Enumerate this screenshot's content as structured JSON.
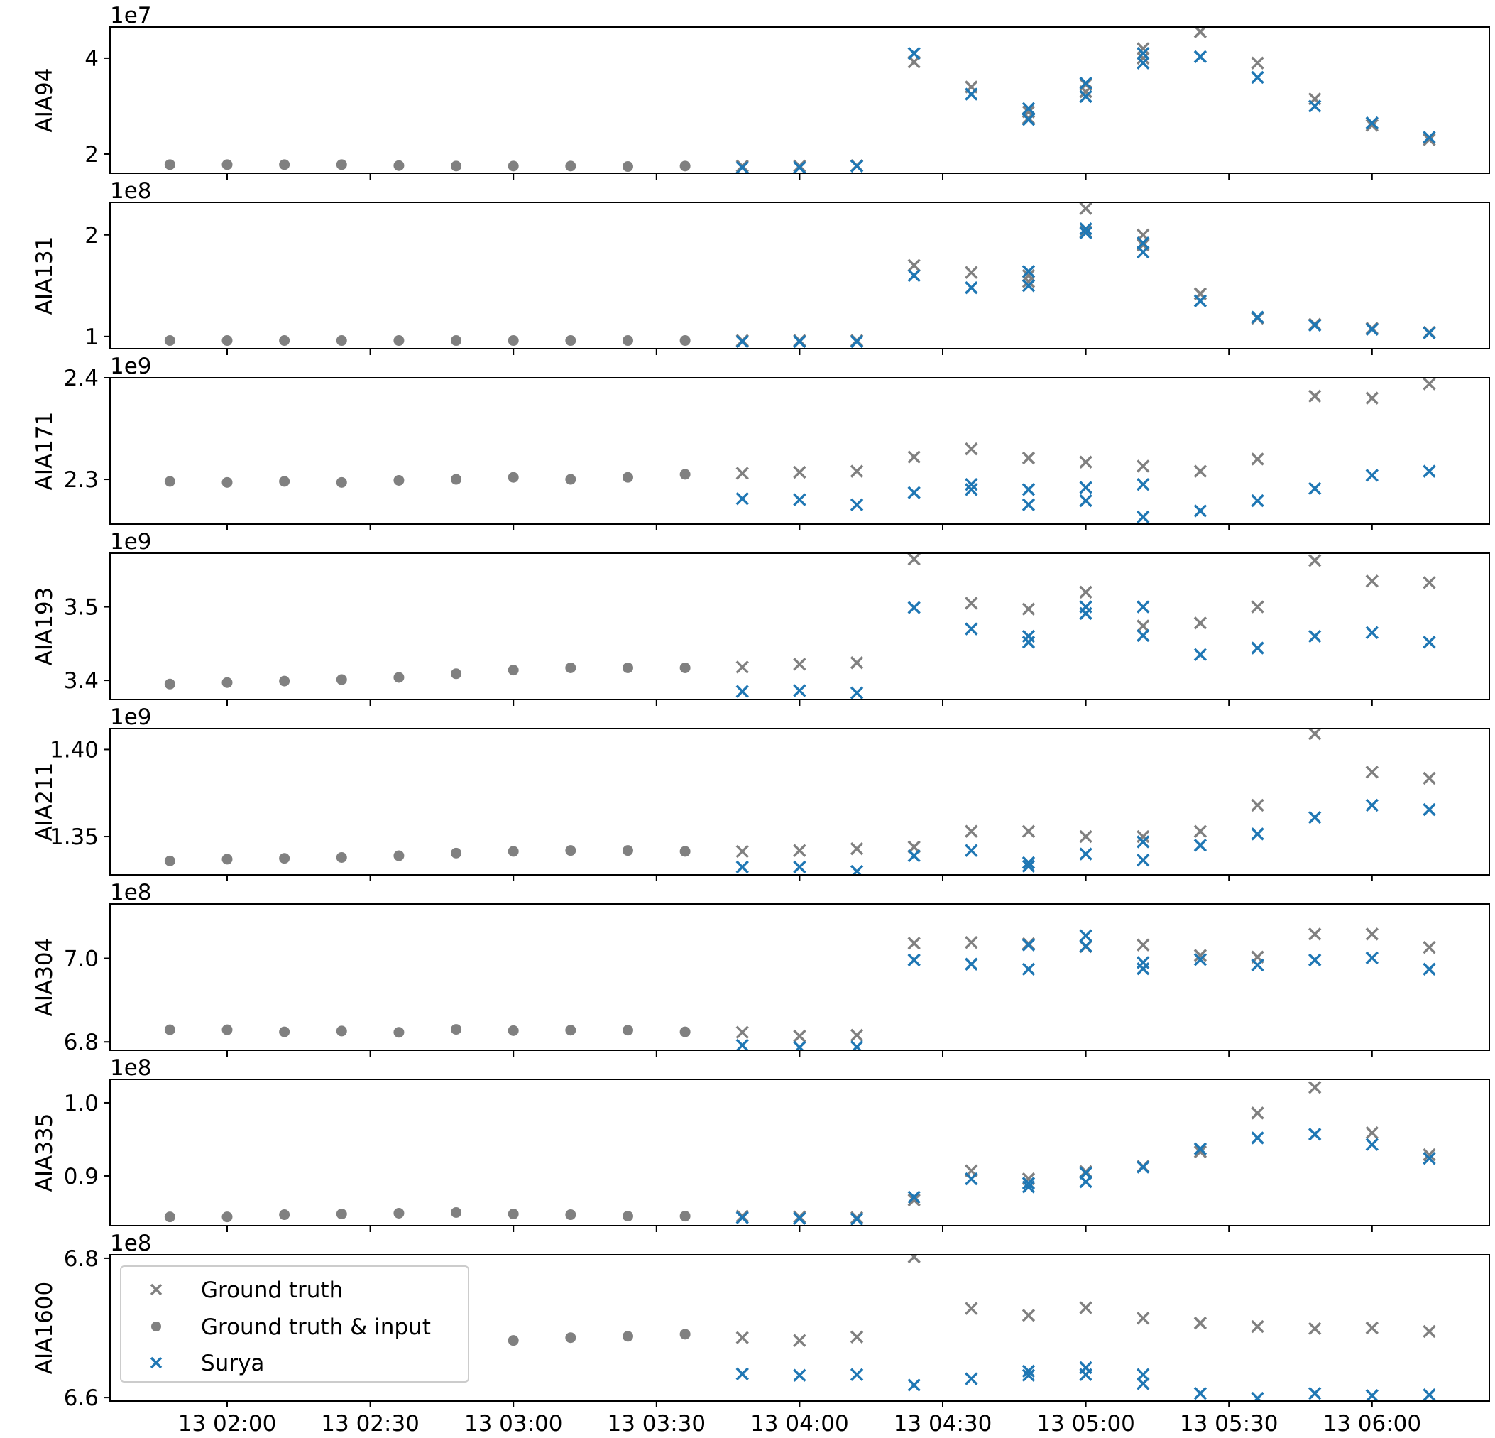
{
  "chart_data": {
    "type": "scatter",
    "x_tick_labels": [
      "13 02:00",
      "13 02:30",
      "13 03:00",
      "13 03:30",
      "13 04:00",
      "13 04:30",
      "13 05:00",
      "13 05:30",
      "13 06:00"
    ],
    "legend": {
      "location": "upper-left of bottom panel",
      "entries": [
        {
          "label": "Ground truth",
          "marker": "x",
          "color": "#808080"
        },
        {
          "label": "Ground truth & input",
          "marker": "dot",
          "color": "#808080"
        },
        {
          "label": "Surya",
          "marker": "x",
          "color": "#1f77b4"
        }
      ]
    },
    "colors": {
      "ground_truth": "#808080",
      "surya": "#1f77b4"
    },
    "input_times": [
      "01:48",
      "02:00",
      "02:12",
      "02:24",
      "02:36",
      "02:48",
      "03:00",
      "03:12",
      "03:24",
      "03:36"
    ],
    "forecast_times": [
      "03:48",
      "04:00",
      "04:12",
      "04:24",
      "04:36",
      "04:48",
      "05:00",
      "05:12",
      "05:24",
      "05:36",
      "05:48",
      "06:00",
      "06:12"
    ],
    "panels": [
      {
        "ylabel": "AIA94",
        "offset": "1e7",
        "ylim": [
          16000000,
          46500000
        ],
        "yticks": [
          {
            "value": 20000000,
            "label": "2"
          },
          {
            "value": 40000000,
            "label": "4"
          }
        ],
        "input": [
          17800000,
          17800000,
          17800000,
          17800000,
          17600000,
          17500000,
          17500000,
          17500000,
          17400000,
          17500000
        ],
        "ground_truth": [
          [
            17500000
          ],
          [
            17500000
          ],
          [
            17600000
          ],
          [
            39200000
          ],
          [
            34000000
          ],
          [
            28800000,
            27500000
          ],
          [
            34500000,
            33000000
          ],
          [
            42000000,
            40000000
          ],
          [
            45500000
          ],
          [
            39000000
          ],
          [
            31500000
          ],
          [
            26000000
          ],
          [
            23000000
          ]
        ],
        "surya": [
          [
            17200000
          ],
          [
            17200000
          ],
          [
            17500000
          ],
          [
            41000000
          ],
          [
            32500000
          ],
          [
            29500000,
            27200000
          ],
          [
            34800000,
            32000000
          ],
          [
            41000000,
            39000000
          ],
          [
            40300000
          ],
          [
            36000000
          ],
          [
            30000000
          ],
          [
            26500000
          ],
          [
            23500000
          ]
        ]
      },
      {
        "ylabel": "AIA131",
        "offset": "1e8",
        "ylim": [
          88000000,
          232000000
        ],
        "yticks": [
          {
            "value": 100000000,
            "label": "1"
          },
          {
            "value": 200000000,
            "label": "2"
          }
        ],
        "input": [
          96000000,
          96000000,
          96000000,
          96000000,
          96000000,
          96000000,
          96000000,
          96000000,
          96000000,
          96000000
        ],
        "ground_truth": [
          [
            96000000
          ],
          [
            96000000
          ],
          [
            96000000
          ],
          [
            170000000
          ],
          [
            163000000
          ],
          [
            160000000,
            154000000
          ],
          [
            226000000,
            203000000
          ],
          [
            200000000,
            190000000
          ],
          [
            142000000
          ],
          [
            118000000
          ],
          [
            112000000
          ],
          [
            108000000
          ],
          [
            104000000
          ]
        ],
        "surya": [
          [
            95000000
          ],
          [
            95000000
          ],
          [
            95000000
          ],
          [
            160000000
          ],
          [
            148000000
          ],
          [
            164000000,
            150000000
          ],
          [
            206000000,
            202000000
          ],
          [
            192000000,
            183000000
          ],
          [
            135000000
          ],
          [
            119000000
          ],
          [
            111000000
          ],
          [
            107000000
          ],
          [
            103500000
          ]
        ]
      },
      {
        "ylabel": "AIA171",
        "offset": "1e9",
        "ylim": [
          2256000000,
          2400000000
        ],
        "yticks": [
          {
            "value": 2300000000,
            "label": "2.3"
          },
          {
            "value": 2400000000,
            "label": "2.4"
          }
        ],
        "input": [
          2298000000,
          2297000000,
          2298000000,
          2297000000,
          2299000000,
          2300000000,
          2302000000,
          2300000000,
          2302000000,
          2305000000
        ],
        "ground_truth": [
          [
            2306000000
          ],
          [
            2307000000
          ],
          [
            2308000000
          ],
          [
            2322000000
          ],
          [
            2330000000
          ],
          [
            2321000000
          ],
          [
            2317000000
          ],
          [
            2313000000
          ],
          [
            2308000000
          ],
          [
            2320000000
          ],
          [
            2382000000
          ],
          [
            2380000000
          ],
          [
            2394000000
          ]
        ],
        "surya": [
          [
            2281000000
          ],
          [
            2280000000
          ],
          [
            2275000000
          ],
          [
            2287000000
          ],
          [
            2295000000,
            2290000000
          ],
          [
            2275000000,
            2290000000
          ],
          [
            2292000000,
            2279000000
          ],
          [
            2295000000,
            2263000000
          ],
          [
            2269000000
          ],
          [
            2279000000
          ],
          [
            2291000000
          ],
          [
            2304000000
          ],
          [
            2308000000
          ]
        ]
      },
      {
        "ylabel": "AIA193",
        "offset": "1e9",
        "ylim": [
          3374000000,
          3573000000
        ],
        "yticks": [
          {
            "value": 3400000000,
            "label": "3.4"
          },
          {
            "value": 3500000000,
            "label": "3.5"
          }
        ],
        "input": [
          3395000000,
          3397000000,
          3399000000,
          3401000000,
          3404000000,
          3409000000,
          3414000000,
          3417000000,
          3417000000,
          3417000000
        ],
        "ground_truth": [
          [
            3418000000
          ],
          [
            3422000000
          ],
          [
            3424000000
          ],
          [
            3565000000
          ],
          [
            3505000000
          ],
          [
            3497000000
          ],
          [
            3520000000
          ],
          [
            3474000000
          ],
          [
            3478000000
          ],
          [
            3500000000
          ],
          [
            3563000000
          ],
          [
            3535000000
          ],
          [
            3533000000
          ]
        ],
        "surya": [
          [
            3385000000
          ],
          [
            3386000000
          ],
          [
            3383000000
          ],
          [
            3499000000
          ],
          [
            3470000000
          ],
          [
            3460000000,
            3452000000
          ],
          [
            3500000000,
            3491000000
          ],
          [
            3500000000,
            3461000000
          ],
          [
            3435000000
          ],
          [
            3444000000
          ],
          [
            3460000000
          ],
          [
            3465000000
          ],
          [
            3452000000
          ]
        ]
      },
      {
        "ylabel": "AIA211",
        "offset": "1e9",
        "ylim": [
          1328000000,
          1412000000
        ],
        "yticks": [
          {
            "value": 1350000000,
            "label": "1.35"
          },
          {
            "value": 1400000000,
            "label": "1.40"
          }
        ],
        "input": [
          1336000000,
          1337000000,
          1337500000,
          1338000000,
          1339000000,
          1340500000,
          1341500000,
          1342000000,
          1342000000,
          1341500000
        ],
        "ground_truth": [
          [
            1341500000
          ],
          [
            1342000000
          ],
          [
            1343000000
          ],
          [
            1344000000
          ],
          [
            1353000000
          ],
          [
            1353000000
          ],
          [
            1350000000
          ],
          [
            1350000000
          ],
          [
            1353000000
          ],
          [
            1368000000
          ],
          [
            1409000000
          ],
          [
            1387000000
          ],
          [
            1383500000
          ]
        ],
        "surya": [
          [
            1332500000
          ],
          [
            1332500000
          ],
          [
            1330000000
          ],
          [
            1339000000
          ],
          [
            1342000000
          ],
          [
            1335000000,
            1333000000
          ],
          [
            1340000000
          ],
          [
            1336500000,
            1347000000
          ],
          [
            1345000000
          ],
          [
            1351500000
          ],
          [
            1361000000
          ],
          [
            1368000000
          ],
          [
            1365500000
          ]
        ]
      },
      {
        "ylabel": "AIA304",
        "offset": "1e8",
        "ylim": [
          678000000,
          713000000
        ],
        "yticks": [
          {
            "value": 680000000,
            "label": "6.8"
          },
          {
            "value": 700000000,
            "label": "7.0"
          }
        ],
        "input": [
          682900000,
          682900000,
          682400000,
          682600000,
          682300000,
          683000000,
          682700000,
          682800000,
          682800000,
          682400000
        ],
        "ground_truth": [
          [
            682300000
          ],
          [
            681400000
          ],
          [
            681600000
          ],
          [
            703600000
          ],
          [
            703800000
          ],
          [
            703500000
          ],
          [
            702800000
          ],
          [
            703200000
          ],
          [
            700700000
          ],
          [
            700300000
          ],
          [
            705800000
          ],
          [
            705800000
          ],
          [
            702600000
          ]
        ],
        "surya": [
          [
            679200000
          ],
          [
            678700000
          ],
          [
            678800000
          ],
          [
            699600000
          ],
          [
            698600000
          ],
          [
            703200000,
            697400000
          ],
          [
            705400000,
            702900000
          ],
          [
            699000000,
            697500000
          ],
          [
            699700000
          ],
          [
            698400000
          ],
          [
            699600000
          ],
          [
            700100000
          ],
          [
            697400000
          ]
        ]
      },
      {
        "ylabel": "AIA335",
        "offset": "1e8",
        "ylim": [
          83200000,
          103200000
        ],
        "yticks": [
          {
            "value": 90000000,
            "label": "0.9"
          },
          {
            "value": 100000000,
            "label": "1.0"
          }
        ],
        "input": [
          84400000,
          84400000,
          84700000,
          84800000,
          84900000,
          85000000,
          84800000,
          84700000,
          84500000,
          84500000
        ],
        "ground_truth": [
          [
            84500000
          ],
          [
            84400000
          ],
          [
            84300000
          ],
          [
            86700000
          ],
          [
            90700000
          ],
          [
            89600000
          ],
          [
            90600000
          ],
          [
            91300000
          ],
          [
            93300000
          ],
          [
            98600000
          ],
          [
            102100000
          ],
          [
            95900000
          ],
          [
            92900000
          ]
        ],
        "surya": [
          [
            84300000
          ],
          [
            84200000
          ],
          [
            84100000
          ],
          [
            87100000
          ],
          [
            89600000
          ],
          [
            89000000,
            88500000
          ],
          [
            90400000,
            89200000
          ],
          [
            91200000
          ],
          [
            93700000
          ],
          [
            95200000
          ],
          [
            95700000
          ],
          [
            94300000
          ],
          [
            92400000
          ]
        ]
      },
      {
        "ylabel": "AIA1600",
        "offset": "1e8",
        "ylim": [
          659500000,
          680500000
        ],
        "yticks": [
          {
            "value": 660000000,
            "label": "6.6"
          },
          {
            "value": 680000000,
            "label": "6.8"
          }
        ],
        "input": [
          669200000,
          668900000,
          668600000,
          668400000,
          668500000,
          668800000,
          668200000,
          668600000,
          668800000,
          669100000
        ],
        "ground_truth": [
          [
            668600000
          ],
          [
            668200000
          ],
          [
            668700000
          ],
          [
            680200000
          ],
          [
            672800000
          ],
          [
            671800000
          ],
          [
            672900000
          ],
          [
            671400000
          ],
          [
            670700000
          ],
          [
            670200000
          ],
          [
            669900000
          ],
          [
            670000000
          ],
          [
            669500000
          ]
        ],
        "surya": [
          [
            663400000
          ],
          [
            663200000
          ],
          [
            663300000
          ],
          [
            661800000
          ],
          [
            662700000
          ],
          [
            663800000,
            663200000
          ],
          [
            664300000,
            663300000
          ],
          [
            663300000,
            662000000
          ],
          [
            660600000
          ],
          [
            659900000
          ],
          [
            660600000
          ],
          [
            660300000
          ],
          [
            660400000
          ]
        ]
      }
    ]
  }
}
